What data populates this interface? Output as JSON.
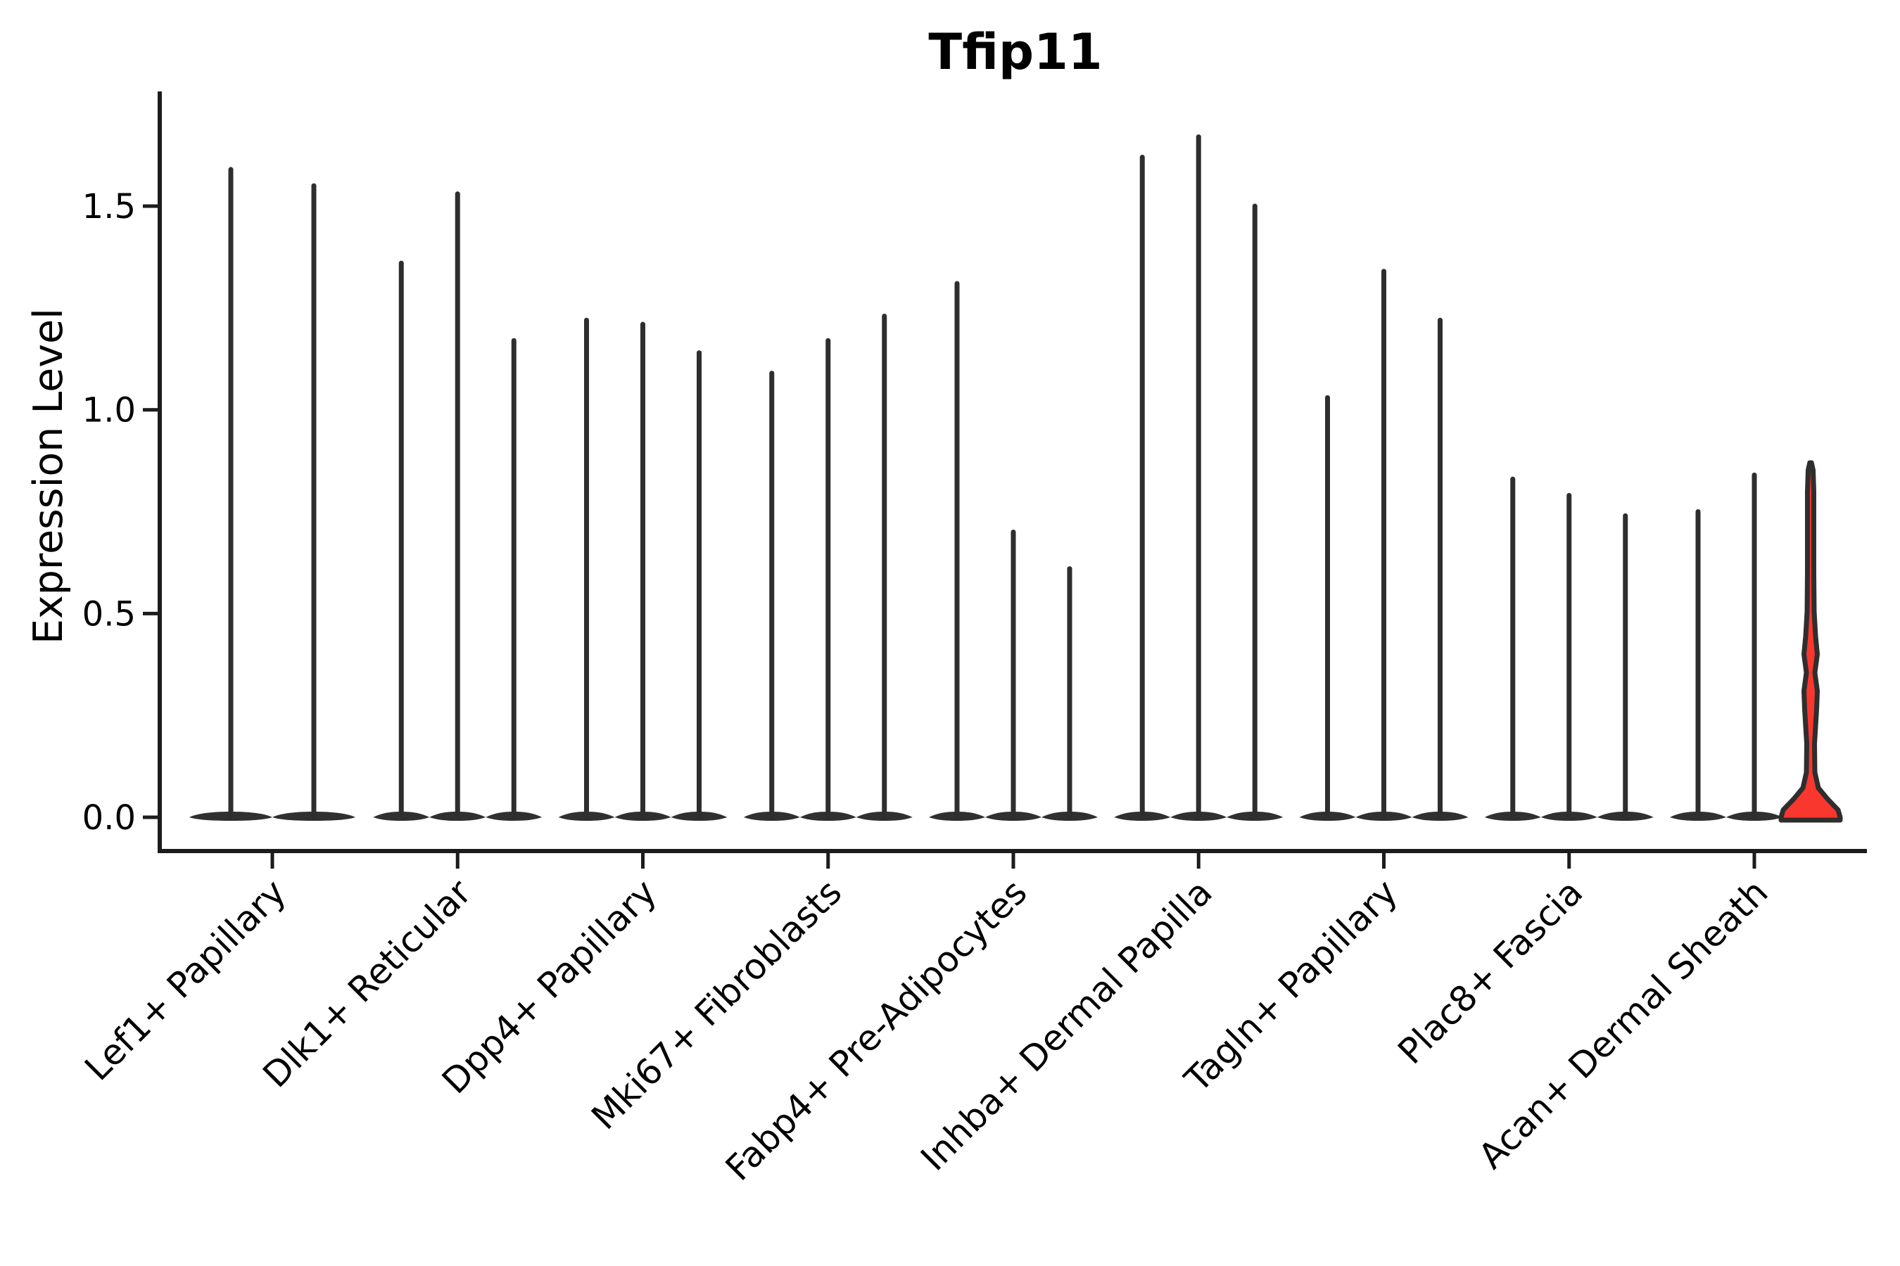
{
  "chart_data": {
    "type": "violin",
    "title": "Tfip11",
    "ylabel": "Expression Level",
    "xlabel": "",
    "grid": false,
    "legend": false,
    "ylim": [
      -0.083,
      1.78
    ],
    "yticks": [
      {
        "value": 0.0,
        "label": "0.0"
      },
      {
        "value": 0.5,
        "label": "0.5"
      },
      {
        "value": 1.0,
        "label": "1.0"
      },
      {
        "value": 1.5,
        "label": "1.5"
      }
    ],
    "categories": [
      "Lef1+ Papillary",
      "Dlk1+ Reticular",
      "Dpp4+ Papillary",
      "Mki67+ Fibroblasts",
      "Fabp4+ Pre-Adipocytes",
      "Inhba+ Dermal Papilla",
      "Tagln+ Papillary",
      "Plac8+ Fascia",
      "Acan+ Dermal Sheath"
    ],
    "groups": [
      {
        "category": "Lef1+ Papillary",
        "violin_max": [
          1.59,
          1.55
        ]
      },
      {
        "category": "Dlk1+ Reticular",
        "violin_max": [
          1.36,
          1.53,
          1.17
        ]
      },
      {
        "category": "Dpp4+ Papillary",
        "violin_max": [
          1.22,
          1.21,
          1.14
        ]
      },
      {
        "category": "Mki67+ Fibroblasts",
        "violin_max": [
          1.09,
          1.17,
          1.23
        ]
      },
      {
        "category": "Fabp4+ Pre-Adipocytes",
        "violin_max": [
          1.31,
          0.7,
          0.61
        ]
      },
      {
        "category": "Inhba+ Dermal Papilla",
        "violin_max": [
          1.62,
          1.67,
          1.5
        ]
      },
      {
        "category": "Tagln+ Papillary",
        "violin_max": [
          1.03,
          1.34,
          1.22
        ]
      },
      {
        "category": "Plac8+ Fascia",
        "violin_max": [
          0.83,
          0.79,
          0.74
        ]
      },
      {
        "category": "Acan+ Dermal Sheath",
        "violin_max": [
          0.75,
          0.84,
          0.87
        ]
      }
    ],
    "highlight": {
      "category": "Acan+ Dermal Sheath",
      "violin_index": 2,
      "fill_color": "#fa372e",
      "max": 0.87,
      "profile": [
        [
          0.0,
          42.0
        ],
        [
          0.018,
          39.0
        ],
        [
          0.045,
          24.0
        ],
        [
          0.072,
          11.0
        ],
        [
          0.11,
          6.0
        ],
        [
          0.18,
          5.5
        ],
        [
          0.265,
          8.5
        ],
        [
          0.31,
          9.5
        ],
        [
          0.355,
          6.0
        ],
        [
          0.4,
          9.5
        ],
        [
          0.445,
          7.0
        ],
        [
          0.505,
          5.0
        ],
        [
          0.6,
          4.5
        ],
        [
          0.7,
          4.5
        ],
        [
          0.8,
          4.5
        ],
        [
          0.852,
          3.5
        ],
        [
          0.87,
          1.2
        ]
      ]
    },
    "style": {
      "outline_color": "#2e2e2e",
      "base_fill_color": "#303030",
      "axis_color": "#1c1c1c",
      "background": "#ffffff"
    }
  }
}
